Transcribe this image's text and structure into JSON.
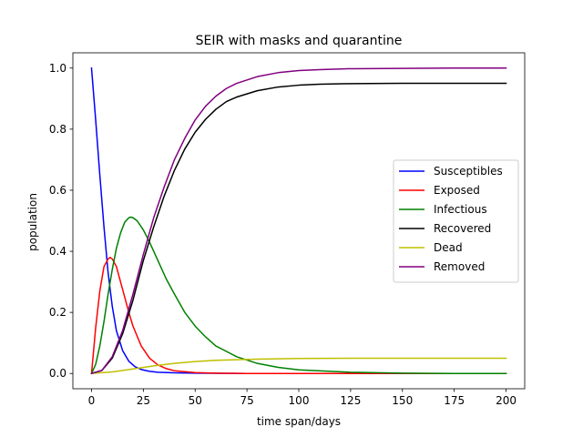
{
  "chart_data": {
    "type": "line",
    "title": "SEIR with masks and quarantine",
    "xlabel": "time span/days",
    "ylabel": "population",
    "xlim": [
      -9,
      209
    ],
    "ylim": [
      -0.05,
      1.05
    ],
    "xticks": [
      0,
      25,
      50,
      75,
      100,
      125,
      150,
      175,
      200
    ],
    "yticks": [
      0.0,
      0.2,
      0.4,
      0.6,
      0.8,
      1.0
    ],
    "ytick_labels": [
      "0.0",
      "0.2",
      "0.4",
      "0.6",
      "0.8",
      "1.0"
    ],
    "grid": false,
    "legend_placement": "center-right",
    "series": [
      {
        "name": "Susceptibles",
        "color": "#0000ff",
        "x": [
          0,
          2,
          4,
          6,
          8,
          10,
          12,
          15,
          18,
          21,
          24,
          28,
          32,
          40,
          50,
          75,
          100,
          125,
          150,
          175,
          200
        ],
        "y": [
          1.0,
          0.83,
          0.65,
          0.48,
          0.33,
          0.22,
          0.14,
          0.075,
          0.04,
          0.022,
          0.013,
          0.007,
          0.004,
          0.002,
          0.001,
          0.0,
          0.0,
          0.0,
          0.0,
          0.0,
          0.0
        ]
      },
      {
        "name": "Exposed",
        "color": "#ff0000",
        "x": [
          0,
          2,
          4,
          6,
          8,
          9,
          10,
          12,
          14,
          16,
          18,
          20,
          24,
          28,
          32,
          36,
          40,
          50,
          60,
          75,
          100,
          125,
          150,
          175,
          200
        ],
        "y": [
          0.0,
          0.15,
          0.27,
          0.35,
          0.375,
          0.38,
          0.375,
          0.35,
          0.3,
          0.25,
          0.2,
          0.155,
          0.09,
          0.05,
          0.028,
          0.016,
          0.009,
          0.003,
          0.001,
          0.0,
          0.0,
          0.0,
          0.0,
          0.0,
          0.0
        ]
      },
      {
        "name": "Infectious",
        "color": "#008000",
        "x": [
          0,
          2,
          4,
          6,
          8,
          10,
          12,
          14,
          16,
          18,
          19,
          20,
          22,
          25,
          28,
          32,
          36,
          40,
          45,
          50,
          55,
          60,
          70,
          80,
          90,
          100,
          125,
          150,
          175,
          200
        ],
        "y": [
          0.0,
          0.03,
          0.09,
          0.17,
          0.26,
          0.34,
          0.41,
          0.46,
          0.495,
          0.51,
          0.512,
          0.51,
          0.5,
          0.47,
          0.43,
          0.37,
          0.31,
          0.26,
          0.2,
          0.155,
          0.12,
          0.09,
          0.055,
          0.033,
          0.02,
          0.012,
          0.004,
          0.001,
          0.0,
          0.0
        ]
      },
      {
        "name": "Recovered",
        "color": "#000000",
        "x": [
          0,
          5,
          10,
          15,
          20,
          25,
          30,
          35,
          40,
          45,
          50,
          55,
          60,
          65,
          70,
          80,
          90,
          100,
          110,
          125,
          150,
          175,
          200
        ],
        "y": [
          0.0,
          0.01,
          0.05,
          0.13,
          0.24,
          0.37,
          0.48,
          0.58,
          0.665,
          0.735,
          0.79,
          0.832,
          0.865,
          0.89,
          0.905,
          0.926,
          0.938,
          0.944,
          0.947,
          0.949,
          0.95,
          0.95,
          0.95
        ]
      },
      {
        "name": "Dead",
        "color": "#bfbf00",
        "x": [
          0,
          10,
          20,
          30,
          40,
          50,
          60,
          70,
          80,
          90,
          100,
          125,
          150,
          175,
          200
        ],
        "y": [
          0.0,
          0.005,
          0.015,
          0.025,
          0.033,
          0.039,
          0.043,
          0.045,
          0.047,
          0.048,
          0.049,
          0.05,
          0.05,
          0.05,
          0.05
        ]
      },
      {
        "name": "Removed",
        "color": "#800080",
        "x": [
          0,
          5,
          10,
          15,
          20,
          25,
          30,
          35,
          40,
          45,
          50,
          55,
          60,
          65,
          70,
          80,
          90,
          100,
          110,
          125,
          150,
          175,
          200
        ],
        "y": [
          0.0,
          0.01,
          0.055,
          0.14,
          0.26,
          0.39,
          0.51,
          0.61,
          0.7,
          0.77,
          0.83,
          0.875,
          0.908,
          0.933,
          0.95,
          0.972,
          0.985,
          0.992,
          0.995,
          0.998,
          0.999,
          1.0,
          1.0
        ]
      }
    ]
  }
}
